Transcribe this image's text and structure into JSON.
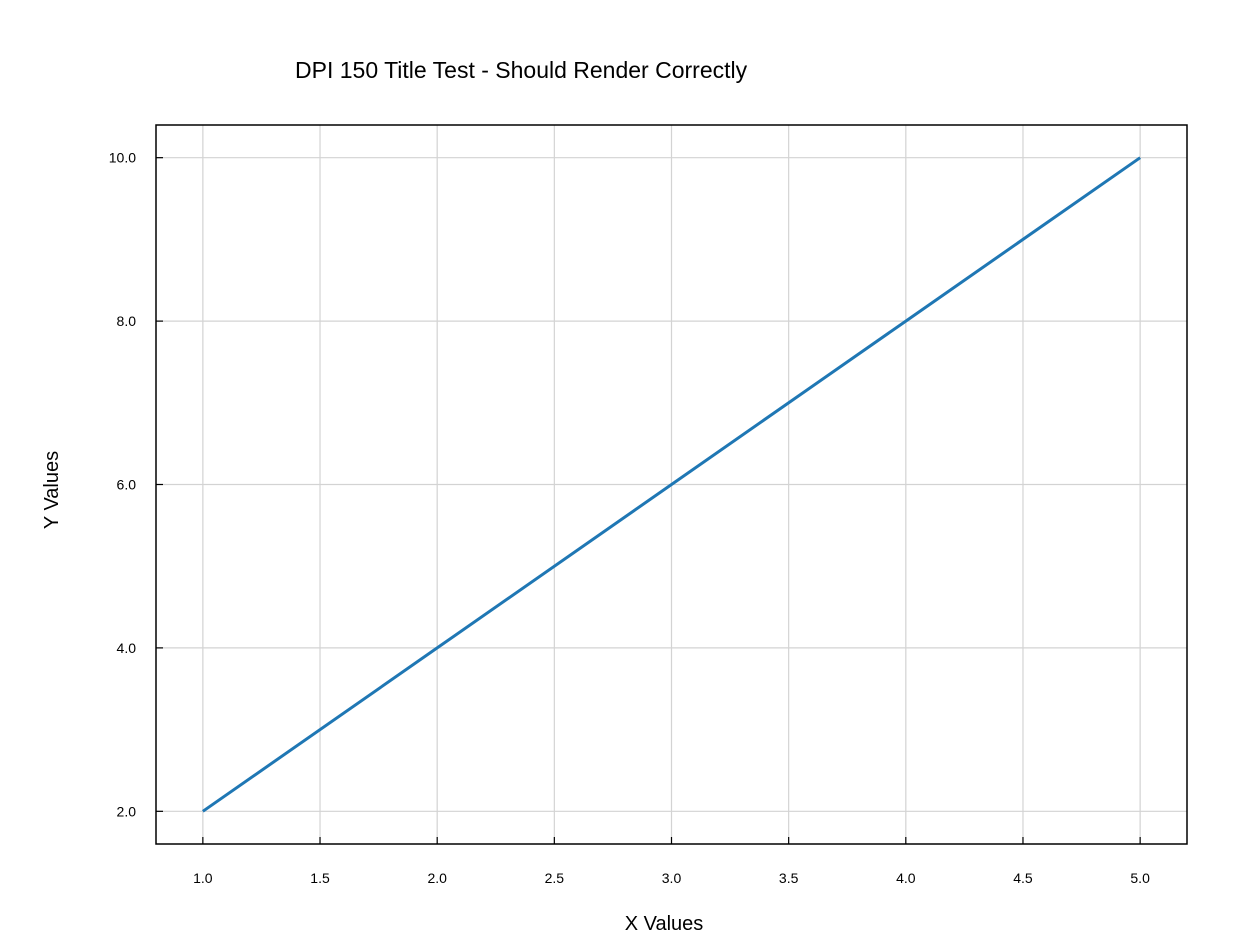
{
  "chart_data": {
    "type": "line",
    "title": "DPI 150 Title Test - Should Render Correctly",
    "xlabel": "X Values",
    "ylabel": "Y Values",
    "xlim": [
      0.8,
      5.2
    ],
    "ylim": [
      1.6,
      10.4
    ],
    "xticks": [
      1.0,
      1.5,
      2.0,
      2.5,
      3.0,
      3.5,
      4.0,
      4.5,
      5.0
    ],
    "yticks": [
      2.0,
      4.0,
      6.0,
      8.0,
      10.0
    ],
    "xtick_labels": [
      "1.0",
      "1.5",
      "2.0",
      "2.5",
      "3.0",
      "3.5",
      "4.0",
      "4.5",
      "5.0"
    ],
    "ytick_labels": [
      "2.0",
      "4.0",
      "6.0",
      "8.0",
      "10.0"
    ],
    "grid": true,
    "legend": "none",
    "series": [
      {
        "x": [
          1,
          2,
          3,
          4,
          5
        ],
        "y": [
          2,
          4,
          6,
          8,
          10
        ],
        "color": "#1f77b4"
      }
    ]
  }
}
